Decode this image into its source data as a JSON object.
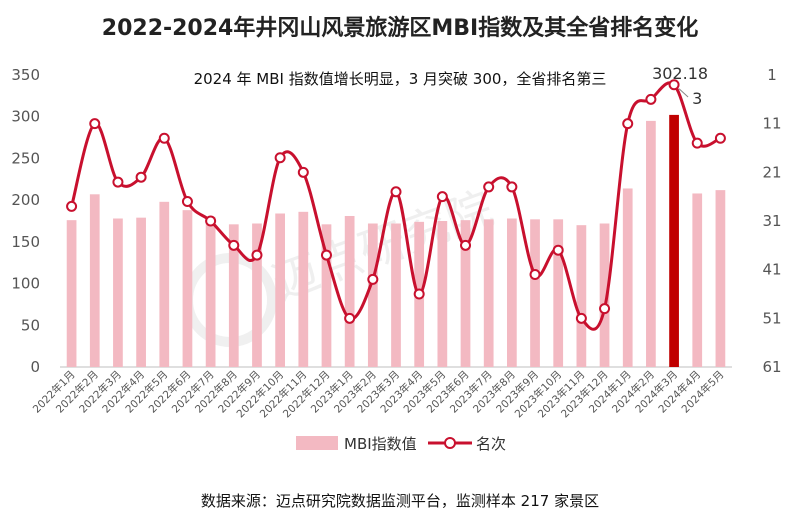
{
  "title": "2022-2024年井冈山风景旅游区MBI指数及其全省排名变化",
  "subtitle": "2024 年 MBI 指数值增长明显，3 月突破 300，全省排名第三",
  "source": "数据来源：迈点研究院数据监测平台，监测样本 217 家景区",
  "watermark": "迈点研究院",
  "colors": {
    "bar": "#f3b9c2",
    "bar_highlight": "#c00000",
    "line": "#c8102e",
    "marker_fill": "#ffffff"
  },
  "chart_data": {
    "type": "bar+line",
    "categories": [
      "2022年1月",
      "2022年2月",
      "2022年3月",
      "2022年4月",
      "2022年5月",
      "2022年6月",
      "2022年7月",
      "2022年8月",
      "2022年9月",
      "2022年10月",
      "2022年11月",
      "2022年12月",
      "2023年1月",
      "2023年2月",
      "2023年3月",
      "2023年4月",
      "2023年5月",
      "2023年6月",
      "2023年7月",
      "2023年8月",
      "2023年9月",
      "2023年10月",
      "2023年11月",
      "2023年12月",
      "2024年1月",
      "2024年2月",
      "2024年3月",
      "2024年4月",
      "2024年5月"
    ],
    "series": [
      {
        "name": "MBI指数值",
        "type": "bar",
        "axis": "left",
        "values": [
          176,
          207,
          178,
          179,
          198,
          188,
          180,
          171,
          172,
          184,
          186,
          171,
          181,
          172,
          172,
          174,
          175,
          176,
          177,
          178,
          177,
          177,
          170,
          172,
          214,
          295,
          302.18,
          208,
          212
        ]
      },
      {
        "name": "名次",
        "type": "line",
        "axis": "right",
        "inverted": true,
        "values": [
          28,
          11,
          23,
          22,
          14,
          27,
          31,
          36,
          38,
          18,
          21,
          38,
          51,
          43,
          25,
          46,
          26,
          36,
          24,
          24,
          42,
          37,
          51,
          49,
          11,
          6,
          3,
          15,
          14
        ]
      }
    ],
    "highlight": {
      "category": "2024年3月",
      "value_label": "302.18",
      "rank_label": "3"
    },
    "y_left": {
      "min": 0,
      "max": 350,
      "ticks": [
        "0",
        "50",
        "100",
        "150",
        "200",
        "250",
        "300",
        "350"
      ]
    },
    "y_right": {
      "min": 1,
      "max": 61,
      "inverted": true,
      "ticks": [
        "1",
        "11",
        "21",
        "31",
        "41",
        "51",
        "61"
      ]
    },
    "legend": {
      "position": "bottom",
      "entries": [
        "MBI指数值",
        "名次"
      ]
    },
    "grid": false
  }
}
